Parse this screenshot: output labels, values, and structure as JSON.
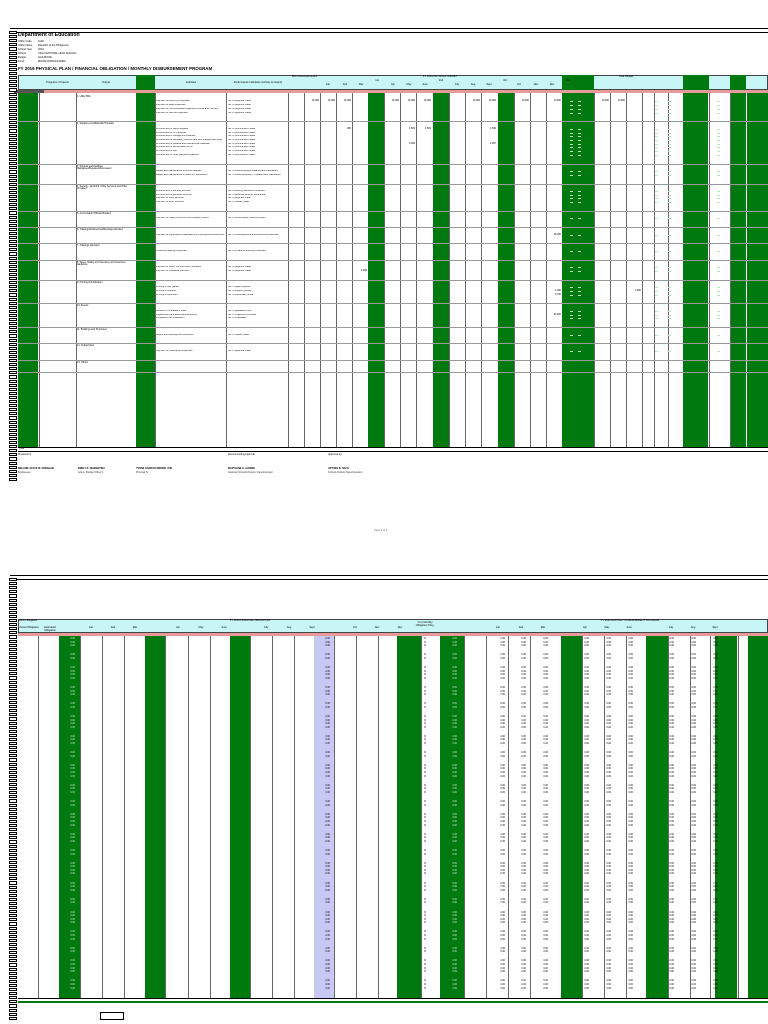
{
  "page1": {
    "header": {
      "agency": "Department of Education",
      "fields": [
        {
          "label": "Office Code",
          "value": "1100"
        },
        {
          "label": "Office Name",
          "value": "Republic of the Philippines"
        },
        {
          "label": "School Year",
          "value": "2019"
        },
        {
          "label": "School",
          "value": "VIGO NATIONAL HIGH SCHOOL"
        },
        {
          "label": "Budget",
          "value": "GAA MOOE"
        },
        {
          "label": "Fund",
          "value": "MOOE DOWNLOADED"
        }
      ],
      "title": "FY 2019 PHYSICAL PLAN / FINANCIAL OBLIGATION / MONTHLY DISBURSEMENT PROGRAM"
    },
    "columns": {
      "program": "Programs / Projects",
      "output": "Output",
      "activities": "Activities",
      "indicators": "Performance Indicators (Activity & Output)",
      "mfo": "MFO Accomplishment",
      "physical": "FY 2019 PHYSICAL TARGET",
      "months": [
        "Jan",
        "Feb",
        "Mar",
        "Apr",
        "May",
        "June",
        "July",
        "Aug",
        "Sept",
        "Oct",
        "Nov",
        "Dec"
      ],
      "q": [
        "1st",
        "2nd",
        "3rd",
        "4th"
      ],
      "total_budget": "Total Budget",
      "allotment": "Allotment Class",
      "balance": "Balance"
    },
    "sections": [
      {
        "label": "1. Utility Bills",
        "rows": [
          {
            "activity": "Payment of electricity expenses",
            "indicator": "No. of payment made",
            "vals": [
              "10,000",
              "10,000",
              "10,000",
              "",
              "10,000",
              "10,000",
              "10,000",
              "",
              "10,000",
              "10,000",
              "10,000",
              "",
              "10,000",
              "10,000",
              "10,000"
            ]
          },
          {
            "activity": "Payment of water expenses",
            "indicator": "No. of payment made",
            "vals": []
          },
          {
            "activity": "Payment of communication expenses (mobile and internet)",
            "indicator": "No. of payment made",
            "vals": []
          },
          {
            "activity": "Payment of internet expenses",
            "indicator": "No. of payment made",
            "vals": []
          }
        ]
      },
      {
        "label": "2. Supplies and Materials Provided",
        "rows": [
          {
            "activity": "Procurement of office supplies",
            "indicator": "No. of procurement made",
            "vals": [
              "",
              "",
              "960",
              "",
              "",
              "1,500",
              "1,500",
              "",
              "",
              "1,560"
            ]
          },
          {
            "activity": "Procurement of ICT supplies",
            "indicator": "No. of procurement made",
            "vals": []
          },
          {
            "activity": "Procurement of storage and cabinets",
            "indicator": "No. of procurement made",
            "vals": []
          },
          {
            "activity": "Procurement of laboratory science and tech supplies and tools",
            "indicator": "No. of procurement made",
            "vals": []
          },
          {
            "activity": "Procurement of medical and instructional materials",
            "indicator": "No. of procurement made",
            "vals": [
              "",
              "",
              "",
              "",
              "",
              "3,000",
              "",
              "",
              "",
              "2,857"
            ]
          },
          {
            "activity": "Procurement of accountable forms",
            "indicator": "No. of procurement made",
            "vals": []
          },
          {
            "activity": "Procurement of fuel",
            "indicator": "No. of procurement made",
            "vals": []
          },
          {
            "activity": "Procurement of other supplies expenses",
            "indicator": "No. of procurement made",
            "vals": []
          }
        ]
      },
      {
        "label": "3. Schools and Facilities Maintained/Repaired/Renovated",
        "rows": [
          {
            "activity": "Repair and maintenance of school facilities",
            "indicator": "No. of school facilities repaired and maintained",
            "vals": []
          },
          {
            "activity": "Repair and maintenance of office ICT Equipment",
            "indicator": "No. of office equipment - repaired and maintained",
            "vals": []
          }
        ]
      },
      {
        "label": "4. Security, Janitorial, Utility Services and Other Provided",
        "rows": [
          {
            "activity": "Procurement of security services",
            "indicator": "No. of security services contracted",
            "vals": []
          },
          {
            "activity": "Procurement of janitorial services",
            "indicator": "No. of janitorial services contracted",
            "vals": []
          },
          {
            "activity": "Payment of utility services",
            "indicator": "No. of payment made",
            "vals": []
          },
          {
            "activity": "Payment of other services",
            "indicator": "No. of utilities made",
            "vals": []
          }
        ]
      },
      {
        "label": "5. Accountable Officials Bonded",
        "rows": [
          {
            "activity": "Payment of fidelity bonds for Accountable Officers",
            "indicator": "No. of Accountable Officers bonded",
            "vals": []
          }
        ]
      },
      {
        "label": "6. Training/Conferences/Meetings attended",
        "rows": [
          {
            "activity": "Payment of registration & attendance to training/seminars/conferences",
            "indicator": "No. of meetings/seminars/conferences attended",
            "vals": [
              "",
              "",
              "",
              "",
              "",
              "",
              "",
              "",
              "",
              "",
              "",
              "",
              "30,000"
            ]
          }
        ]
      },
      {
        "label": "7. Trainings attended",
        "rows": [
          {
            "activity": "In-service training conducted",
            "indicator": "No. of in-service training conducted",
            "vals": []
          }
        ]
      },
      {
        "label": "8. Taxes, fidelity and Insurance and Insurance paid/done",
        "rows": [
          {
            "activity": "Payment of taxes, fire and other insurance",
            "indicator": "No. of payment made",
            "vals": []
          },
          {
            "activity": "Payment of Insurance premium",
            "indicator": "No. of payment made",
            "vals": [
              "",
              "",
              "",
              "2,000"
            ]
          }
        ]
      },
      {
        "label": "9. Printing & Publication",
        "rows": [
          {
            "activity": "Printing of test papers",
            "indicator": "No. of papers printed",
            "vals": []
          },
          {
            "activity": "Printing of Reports",
            "indicator": "No. of Reports printed",
            "vals": [
              "",
              "",
              "",
              "",
              "",
              "",
              "",
              "",
              "",
              "",
              "",
              "",
              "1,000",
              "",
              "",
              "3,000"
            ]
          },
          {
            "activity": "Printing of Diplomas",
            "indicator": "No. of Diplomas Printed",
            "vals": [
              "",
              "",
              "",
              "",
              "",
              "",
              "",
              "",
              "",
              "",
              "",
              "",
              "3,790"
            ]
          }
        ]
      },
      {
        "label": "10. Events",
        "rows": [
          {
            "activity": "Conduct of Graduation Rites",
            "indicator": "No. of graduation rites",
            "vals": []
          },
          {
            "activity": "Organization and Development Events",
            "indicator": "No. of Organized Activities",
            "vals": [
              "",
              "",
              "",
              "",
              "",
              "",
              "",
              "",
              "",
              "",
              "",
              "",
              "60,000"
            ]
          },
          {
            "activity": "Preparation for Graduation",
            "indicator": "No. of Graduates",
            "vals": []
          }
        ]
      },
      {
        "label": "11. Buildings and Structures",
        "rows": [
          {
            "activity": "Repair and buildings and structures",
            "indicator": "No. of repairs made",
            "vals": []
          }
        ]
      },
      {
        "label": "12. Subscription",
        "rows": [
          {
            "activity": "Payment of subscription expenses",
            "indicator": "No. of payment made",
            "vals": []
          }
        ]
      },
      {
        "label": "13. Others",
        "rows": []
      }
    ],
    "totals_label": "Total",
    "sign": {
      "prepared_label": "Prepared by:",
      "recommended_label": "Recommending Approval:",
      "approved_label": "Approved by:",
      "names": [
        {
          "name": "MELANIE JOYCE M. ABRAHAM",
          "role": "Bookkeeper"
        },
        {
          "name": "EMELY R. DIAMANTINA",
          "role": "Admin. Budget Officer II"
        },
        {
          "name": "YVONE GADRUIZ MERINO, PhD",
          "role": "Principal IV"
        },
        {
          "name": "MARYJANE G. ALDERE",
          "role": "Assistant Schools Division Superintendent"
        },
        {
          "name": "ARTURO B. NAZO",
          "role": "Schools Division Superintendent"
        }
      ]
    },
    "footer": "Page 1 of 2"
  },
  "page2": {
    "header": {
      "mfo": "MFO Obligation",
      "physical": "FY 2019 FINANCIAL OBLIGATION",
      "disb": "FY 2019 MONTHLY DISBURSEMENT PROGRAM",
      "percent": "% to Monthly Obligation Prog.",
      "subcols": [
        "Actual Obligation",
        "Estimated Obligation"
      ],
      "months": [
        "Jan",
        "Feb",
        "Mar",
        "Apr",
        "May",
        "June",
        "July",
        "Aug",
        "Sept",
        "Oct",
        "Nov",
        "Dec"
      ],
      "q": [
        "1st",
        "2nd",
        "3rd",
        "4th"
      ]
    },
    "zero_value": "0.00",
    "percent_value": "%"
  },
  "colors": {
    "green": "#007a0e",
    "pink": "#e79a9a",
    "cyan": "#c8f6f6",
    "lavender": "#c8c8f5"
  }
}
